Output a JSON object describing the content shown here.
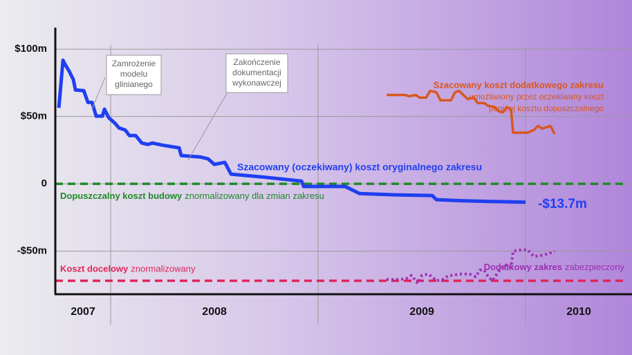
{
  "chart_data": {
    "type": "line",
    "xlim": [
      2007.733,
      2010.513
    ],
    "xticks": [
      2008,
      2009,
      2010
    ],
    "categories": [
      "2007",
      "2008",
      "2009",
      "2010"
    ],
    "ylim": [
      -82,
      116
    ],
    "yticks": [
      {
        "value": 100,
        "label": "$100m"
      },
      {
        "value": 50,
        "label": "$50m"
      },
      0,
      {
        "value": -50,
        "label": "-$50m"
      }
    ],
    "grid": true,
    "series": [
      {
        "name": "Szacowany (oczekiwany) koszt oryginalnego zakresu",
        "color": "#1f3ff0",
        "style": "solid",
        "x": [
          2007.75,
          2007.77,
          2007.78,
          2007.8,
          2007.82,
          2007.83,
          2007.87,
          2007.89,
          2007.91,
          2007.93,
          2007.96,
          2007.97,
          2007.99,
          2008.02,
          2008.04,
          2008.07,
          2008.09,
          2008.12,
          2008.15,
          2008.18,
          2008.2,
          2008.25,
          2008.33,
          2008.34,
          2008.43,
          2008.47,
          2008.5,
          2008.55,
          2008.58,
          2008.73,
          2008.92,
          2008.93,
          2009.13,
          2009.2,
          2009.37,
          2009.55,
          2009.57,
          2009.65,
          2009.68,
          2009.8,
          2010.0
        ],
        "values": [
          56.4,
          91.8,
          88.7,
          83.6,
          77.4,
          69.7,
          69.2,
          60.5,
          60.5,
          50.3,
          50.3,
          55.4,
          49.2,
          45.1,
          41.5,
          40,
          35.9,
          35.9,
          30.3,
          29.2,
          30.3,
          28.7,
          26.7,
          21,
          20,
          18.5,
          14.4,
          15.9,
          7.2,
          5.1,
          2,
          -2,
          -2,
          -7.2,
          -8.2,
          -8.7,
          -11.8,
          -12.3,
          -12.5,
          -13,
          -13.7
        ],
        "value_labels": [
          null,
          null,
          null,
          null,
          null,
          null,
          null,
          null,
          null,
          null,
          null,
          null,
          null,
          null,
          null,
          null,
          null,
          null,
          null,
          null,
          null,
          null,
          null,
          null,
          null,
          null,
          null,
          null,
          null,
          null,
          null,
          null,
          null,
          null,
          null,
          null,
          null,
          null,
          null,
          null,
          "-$13.7m"
        ]
      },
      {
        "name": "Szacowany koszt dodatkowego zakresu",
        "note": [
          "umożliwiony przez oczekiwany koszt",
          "poniżej kosztu dopuszczalnego"
        ],
        "color": "#d9571f",
        "style": "solid",
        "x": [
          2009.33,
          2009.42,
          2009.44,
          2009.47,
          2009.49,
          2009.52,
          2009.54,
          2009.57,
          2009.59,
          2009.64,
          2009.66,
          2009.68,
          2009.72,
          2009.75,
          2009.77,
          2009.8,
          2009.82,
          2009.85,
          2009.87,
          2009.89,
          2009.91,
          2009.93,
          2009.94,
          2010.01,
          2010.04,
          2010.06,
          2010.08,
          2010.12,
          2010.14
        ],
        "values": [
          66,
          66,
          65,
          66,
          64,
          64,
          69,
          68,
          62,
          62,
          68,
          69,
          63,
          64,
          60,
          60,
          58,
          57,
          54,
          53,
          57,
          55,
          38,
          38,
          40,
          43,
          41,
          43,
          37
        ]
      },
      {
        "name": "Dodatkowy zakres",
        "note": [
          "zabezpieczony"
        ],
        "color": "#9c2fb0",
        "style": "dotted",
        "x": [
          2009.33,
          2009.4,
          2009.43,
          2009.45,
          2009.48,
          2009.5,
          2009.53,
          2009.55,
          2009.57,
          2009.6,
          2009.63,
          2009.65,
          2009.68,
          2009.73,
          2009.76,
          2009.78,
          2009.8,
          2009.82,
          2009.84,
          2009.87,
          2009.9,
          2009.93,
          2009.94,
          2009.98,
          2010.01,
          2010.04,
          2010.08,
          2010.11,
          2010.14
        ],
        "values": [
          -71,
          -71,
          -70,
          -68,
          -74,
          -68,
          -67,
          -69,
          -72,
          -71,
          -68,
          -68,
          -67,
          -67,
          -69,
          -64,
          -64,
          -69,
          -72,
          -65,
          -60,
          -62,
          -50,
          -49,
          -49,
          -54,
          -53,
          -52,
          -50
        ]
      }
    ],
    "reference_lines": [
      {
        "name": "Dopuszczalny koszt budowy",
        "note": "znormalizowany dla zmian zakresu",
        "value": 0,
        "color": "#1f8a26"
      },
      {
        "name": "Koszt docelowy",
        "note": "znormalizowany",
        "value": -72,
        "color": "#e0245a"
      }
    ],
    "annotations": [
      {
        "lines": [
          "Zamrożenie",
          "modelu",
          "glinianego"
        ]
      },
      {
        "lines": [
          "Zakończenie",
          "dokumentacji",
          "wykonawczej"
        ]
      }
    ]
  }
}
